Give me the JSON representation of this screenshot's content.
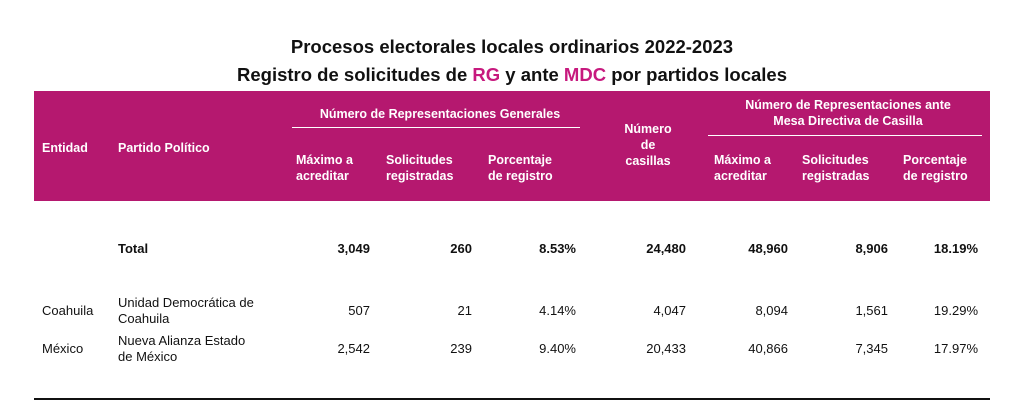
{
  "title": {
    "line1": "Procesos electorales locales ordinarios 2022-2023",
    "line2_pre": "Registro de solicitudes de ",
    "line2_rg": "RG",
    "line2_mid": " y ante ",
    "line2_mdc": "MDC",
    "line2_post": " por partidos locales"
  },
  "colors": {
    "header_bg": "#b5186f",
    "accent": "#c7197e"
  },
  "header": {
    "entidad": "Entidad",
    "partido": "Partido Político",
    "rg_group": "Número de Representaciones Generales",
    "casillas": [
      "Número",
      "de",
      "casillas"
    ],
    "mdc_group": [
      "Número de Representaciones ante",
      "Mesa Directiva de Casilla"
    ],
    "maximo": [
      "Máximo a",
      "acreditar"
    ],
    "solicitudes": [
      "Solicitudes",
      "registradas"
    ],
    "porcentaje": [
      "Porcentaje",
      "de registro"
    ]
  },
  "total": {
    "label": "Total",
    "rg_max": "3,049",
    "rg_sol": "260",
    "rg_pct": "8.53%",
    "casillas": "24,480",
    "mdc_max": "48,960",
    "mdc_sol": "8,906",
    "mdc_pct": "18.19%"
  },
  "rows": [
    {
      "entidad": "Coahuila",
      "partido": [
        "Unidad Democrática de",
        "Coahuila"
      ],
      "rg_max": "507",
      "rg_sol": "21",
      "rg_pct": "4.14%",
      "casillas": "4,047",
      "mdc_max": "8,094",
      "mdc_sol": "1,561",
      "mdc_pct": "19.29%"
    },
    {
      "entidad": "México",
      "partido": [
        "Nueva Alianza Estado",
        "de México"
      ],
      "rg_max": "2,542",
      "rg_sol": "239",
      "rg_pct": "9.40%",
      "casillas": "20,433",
      "mdc_max": "40,866",
      "mdc_sol": "7,345",
      "mdc_pct": "17.97%"
    }
  ]
}
